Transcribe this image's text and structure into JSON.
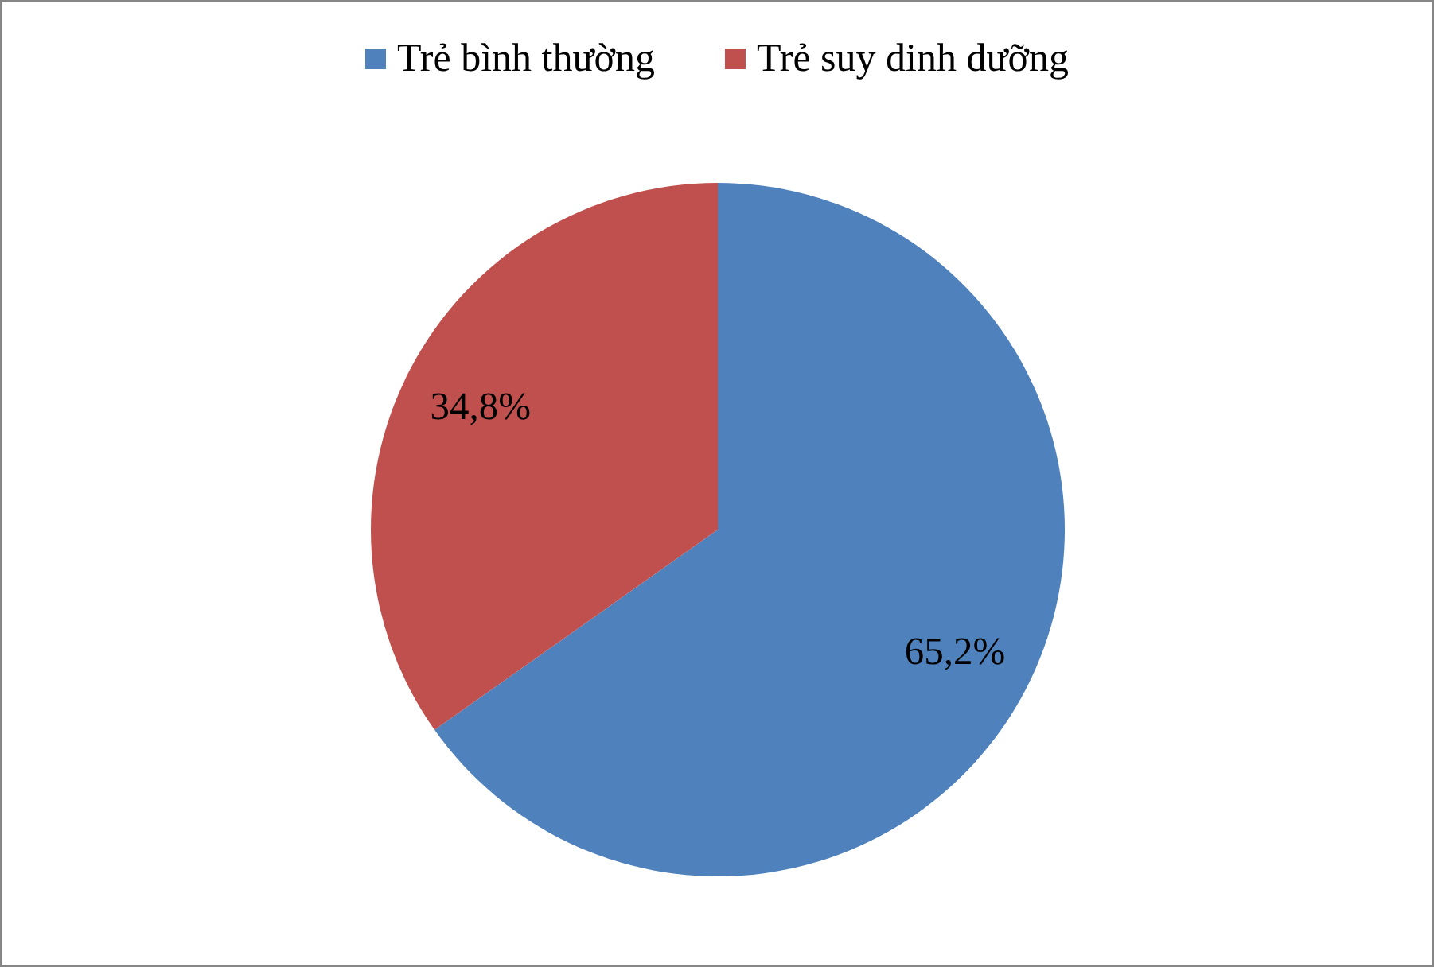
{
  "chart_data": {
    "type": "pie",
    "categories": [
      "Trẻ bình thường",
      "Trẻ suy dinh dưỡng"
    ],
    "values": [
      65.2,
      34.8
    ],
    "colors": [
      "#4f81bd",
      "#c0504d"
    ],
    "value_labels": [
      "65,2%",
      "34,8%"
    ],
    "legend": "top"
  }
}
